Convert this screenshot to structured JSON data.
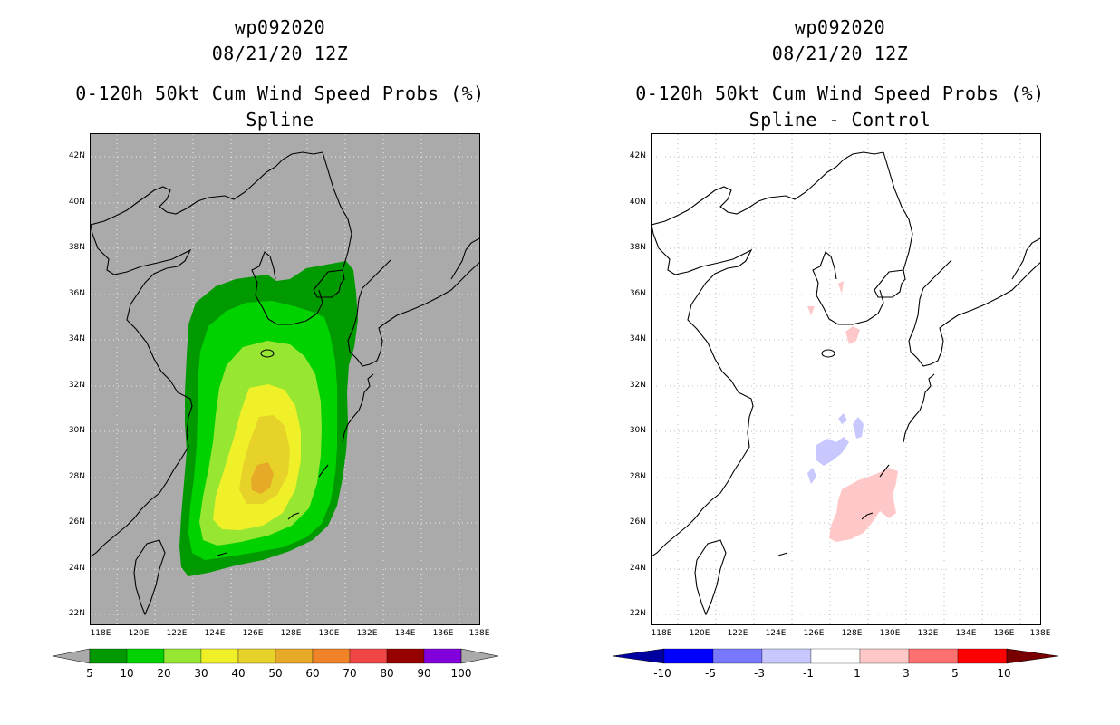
{
  "left": {
    "title_line1": "wp092020",
    "title_line2": "08/21/20 12Z",
    "title_line3": "0-120h 50kt Cum Wind Speed Probs (%)",
    "title_line4": "Spline",
    "lat_labels": [
      "42N",
      "40N",
      "38N",
      "36N",
      "34N",
      "32N",
      "30N",
      "28N",
      "26N",
      "24N",
      "22N"
    ],
    "lon_labels": [
      "118E",
      "120E",
      "122E",
      "124E",
      "126E",
      "128E",
      "130E",
      "132E",
      "134E",
      "136E",
      "138E"
    ],
    "colorbar": {
      "labels": [
        "5",
        "10",
        "20",
        "30",
        "40",
        "50",
        "60",
        "70",
        "80",
        "90",
        "100"
      ],
      "colors": [
        "#009a00",
        "#00d200",
        "#96e632",
        "#f0f028",
        "#e6d228",
        "#e6aa28",
        "#f08228",
        "#f04646",
        "#960000",
        "#8200dc"
      ],
      "end_color": "#aaaaaa"
    }
  },
  "right": {
    "title_line1": "wp092020",
    "title_line2": "08/21/20 12Z",
    "title_line3": "0-120h 50kt Cum Wind Speed Probs (%)",
    "title_line4": "Spline - Control",
    "lat_labels": [
      "42N",
      "40N",
      "38N",
      "36N",
      "34N",
      "32N",
      "30N",
      "28N",
      "26N",
      "24N",
      "22N"
    ],
    "lon_labels": [
      "118E",
      "120E",
      "122E",
      "124E",
      "126E",
      "128E",
      "130E",
      "132E",
      "134E",
      "136E",
      "138E"
    ],
    "colorbar": {
      "labels": [
        "-10",
        "-5",
        "-3",
        "-1",
        "1",
        "3",
        "5",
        "10"
      ],
      "colors": [
        "#0000a0",
        "#0000ff",
        "#7878ff",
        "#c8c8ff",
        "#ffffff",
        "#ffc8c8",
        "#ff7070",
        "#ff0000",
        "#a00000"
      ],
      "low_end_color": "#0000a0",
      "high_end_color": "#780000"
    }
  },
  "map_extent": {
    "lon_min": 117.5,
    "lon_max": 138,
    "lat_min": 21.5,
    "lat_max": 43
  }
}
